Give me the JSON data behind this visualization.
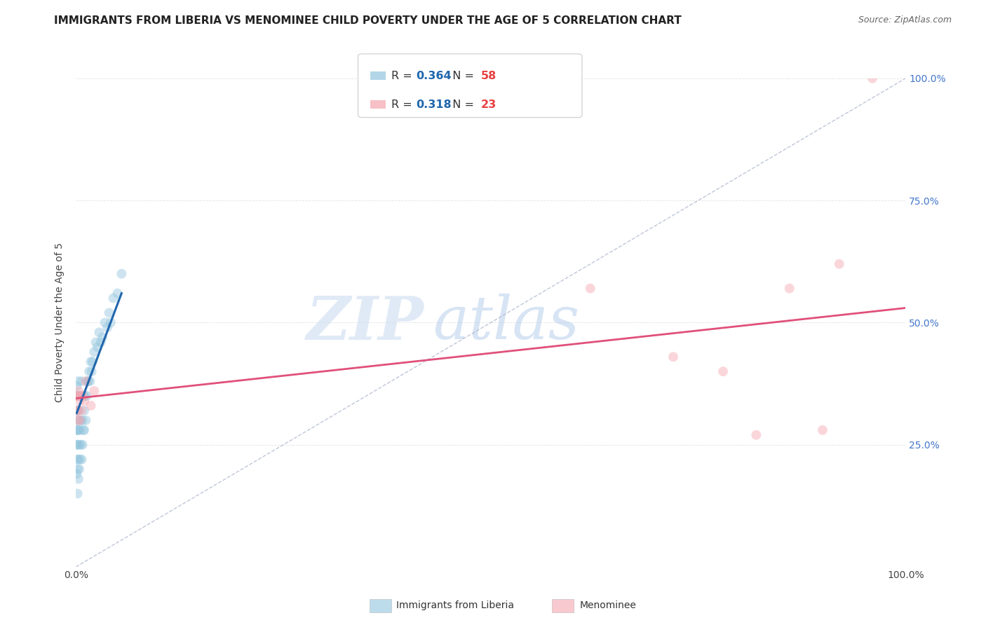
{
  "title": "IMMIGRANTS FROM LIBERIA VS MENOMINEE CHILD POVERTY UNDER THE AGE OF 5 CORRELATION CHART",
  "source": "Source: ZipAtlas.com",
  "ylabel": "Child Poverty Under the Age of 5",
  "xlim": [
    0,
    1.0
  ],
  "ylim": [
    0,
    1.0
  ],
  "legend_entries": [
    {
      "label": "Immigrants from Liberia",
      "R": "0.364",
      "N": "58",
      "color": "#92c5de"
    },
    {
      "label": "Menominee",
      "R": "0.318",
      "N": "23",
      "color": "#f4a6b0"
    }
  ],
  "watermark_zip": "ZIP",
  "watermark_atlas": "atlas",
  "blue_scatter_x": [
    0.001,
    0.001,
    0.001,
    0.001,
    0.001,
    0.001,
    0.001,
    0.001,
    0.002,
    0.002,
    0.002,
    0.002,
    0.002,
    0.002,
    0.003,
    0.003,
    0.003,
    0.003,
    0.003,
    0.004,
    0.004,
    0.004,
    0.005,
    0.005,
    0.005,
    0.006,
    0.006,
    0.007,
    0.007,
    0.008,
    0.008,
    0.009,
    0.009,
    0.01,
    0.01,
    0.011,
    0.012,
    0.013,
    0.014,
    0.015,
    0.016,
    0.017,
    0.018,
    0.019,
    0.02,
    0.022,
    0.024,
    0.026,
    0.028,
    0.03,
    0.032,
    0.035,
    0.038,
    0.04,
    0.042,
    0.045,
    0.05,
    0.055
  ],
  "blue_scatter_y": [
    0.19,
    0.22,
    0.25,
    0.28,
    0.3,
    0.32,
    0.35,
    0.37,
    0.15,
    0.2,
    0.25,
    0.28,
    0.32,
    0.35,
    0.18,
    0.22,
    0.28,
    0.32,
    0.38,
    0.2,
    0.25,
    0.3,
    0.22,
    0.28,
    0.35,
    0.25,
    0.3,
    0.22,
    0.38,
    0.25,
    0.3,
    0.28,
    0.35,
    0.28,
    0.32,
    0.35,
    0.3,
    0.35,
    0.38,
    0.38,
    0.4,
    0.38,
    0.42,
    0.4,
    0.42,
    0.44,
    0.46,
    0.45,
    0.48,
    0.46,
    0.47,
    0.5,
    0.49,
    0.52,
    0.5,
    0.55,
    0.56,
    0.6
  ],
  "pink_scatter_x": [
    0.001,
    0.001,
    0.002,
    0.002,
    0.003,
    0.003,
    0.004,
    0.005,
    0.006,
    0.007,
    0.008,
    0.01,
    0.012,
    0.018,
    0.022,
    0.62,
    0.72,
    0.78,
    0.82,
    0.86,
    0.9,
    0.92,
    0.96
  ],
  "pink_scatter_y": [
    0.32,
    0.35,
    0.3,
    0.35,
    0.32,
    0.36,
    0.34,
    0.3,
    0.35,
    0.32,
    0.35,
    0.34,
    0.38,
    0.33,
    0.36,
    0.57,
    0.43,
    0.4,
    0.27,
    0.57,
    0.28,
    0.62,
    1.0
  ],
  "blue_line_x": [
    0.001,
    0.055
  ],
  "blue_line_y": [
    0.315,
    0.56
  ],
  "pink_line_x": [
    0.0,
    1.0
  ],
  "pink_line_y": [
    0.345,
    0.53
  ],
  "ref_line_x": [
    0.0,
    1.0
  ],
  "ref_line_y": [
    0.0,
    1.0
  ],
  "background_color": "#ffffff",
  "grid_color": "#e0e0e0",
  "title_fontsize": 11,
  "source_fontsize": 9,
  "axis_label_fontsize": 10,
  "tick_fontsize": 10,
  "scatter_size": 100,
  "scatter_alpha": 0.45,
  "blue_color": "#92c5de",
  "pink_color": "#f4a6b0",
  "blue_line_color": "#2166ac",
  "pink_line_color": "#e0507a",
  "ref_line_color": "#b0b8d0",
  "legend_R_color": "#2166ac",
  "legend_N_color": "#e84040",
  "right_tick_color": "#4477cc"
}
